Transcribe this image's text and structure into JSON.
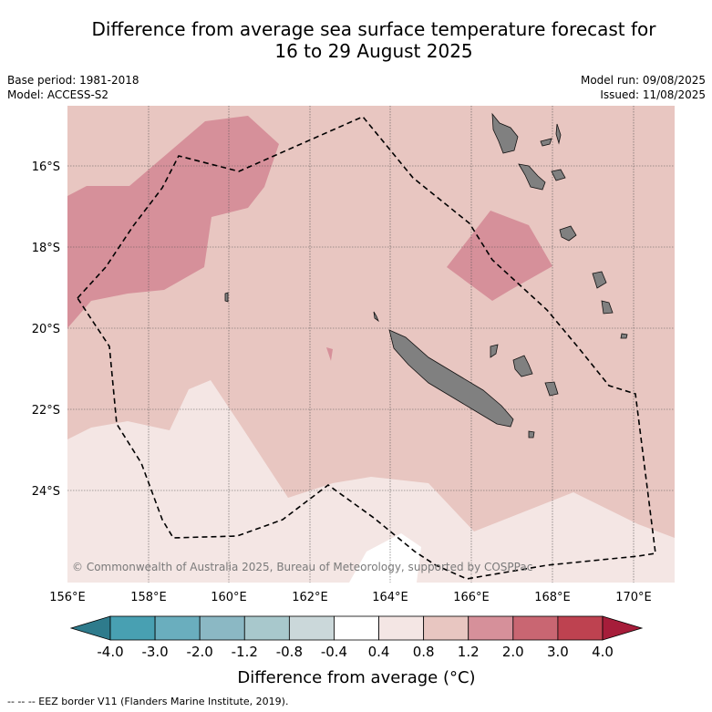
{
  "title": {
    "line1": "Difference from average sea surface temperature forecast for",
    "line2": "16 to 29 August 2025"
  },
  "meta_left": {
    "base_period": "Base period: 1981-2018",
    "model": "Model: ACCESS-S2"
  },
  "meta_right": {
    "model_run": "Model run: 09/08/2025",
    "issued": "Issued: 11/08/2025"
  },
  "map": {
    "lat_ticks": [
      "16°S",
      "18°S",
      "20°S",
      "22°S",
      "24°S"
    ],
    "lon_ticks": [
      "156°E",
      "158°E",
      "160°E",
      "162°E",
      "164°E",
      "166°E",
      "168°E",
      "170°E"
    ],
    "credit": "© Commonwealth of Australia 2025, Bureau of Meteorology, supported by COSPPac",
    "colors": {
      "band_0_4_0_8": "#f4e6e4",
      "band_0_8_1_2": "#e8c6c1",
      "band_1_2_2_0": "#d6909a",
      "land": "#808080",
      "grid": "#555555"
    }
  },
  "colorbar": {
    "labels": [
      "-4.0",
      "-3.0",
      "-2.0",
      "-1.2",
      "-0.8",
      "-0.4",
      "0.4",
      "0.8",
      "1.2",
      "2.0",
      "3.0",
      "4.0"
    ],
    "colors": [
      "#2e7b8c",
      "#48a0b2",
      "#6aaebe",
      "#8bb8c4",
      "#a8c8cc",
      "#cbd8da",
      "#ffffff",
      "#f4e6e4",
      "#e8c6c1",
      "#d6909a",
      "#c96672",
      "#be4250",
      "#a61d3a"
    ],
    "title": "Difference from average (°C)"
  },
  "legend_note": "--  --  -- EEZ border V11 (Flanders Marine Institute, 2019)."
}
